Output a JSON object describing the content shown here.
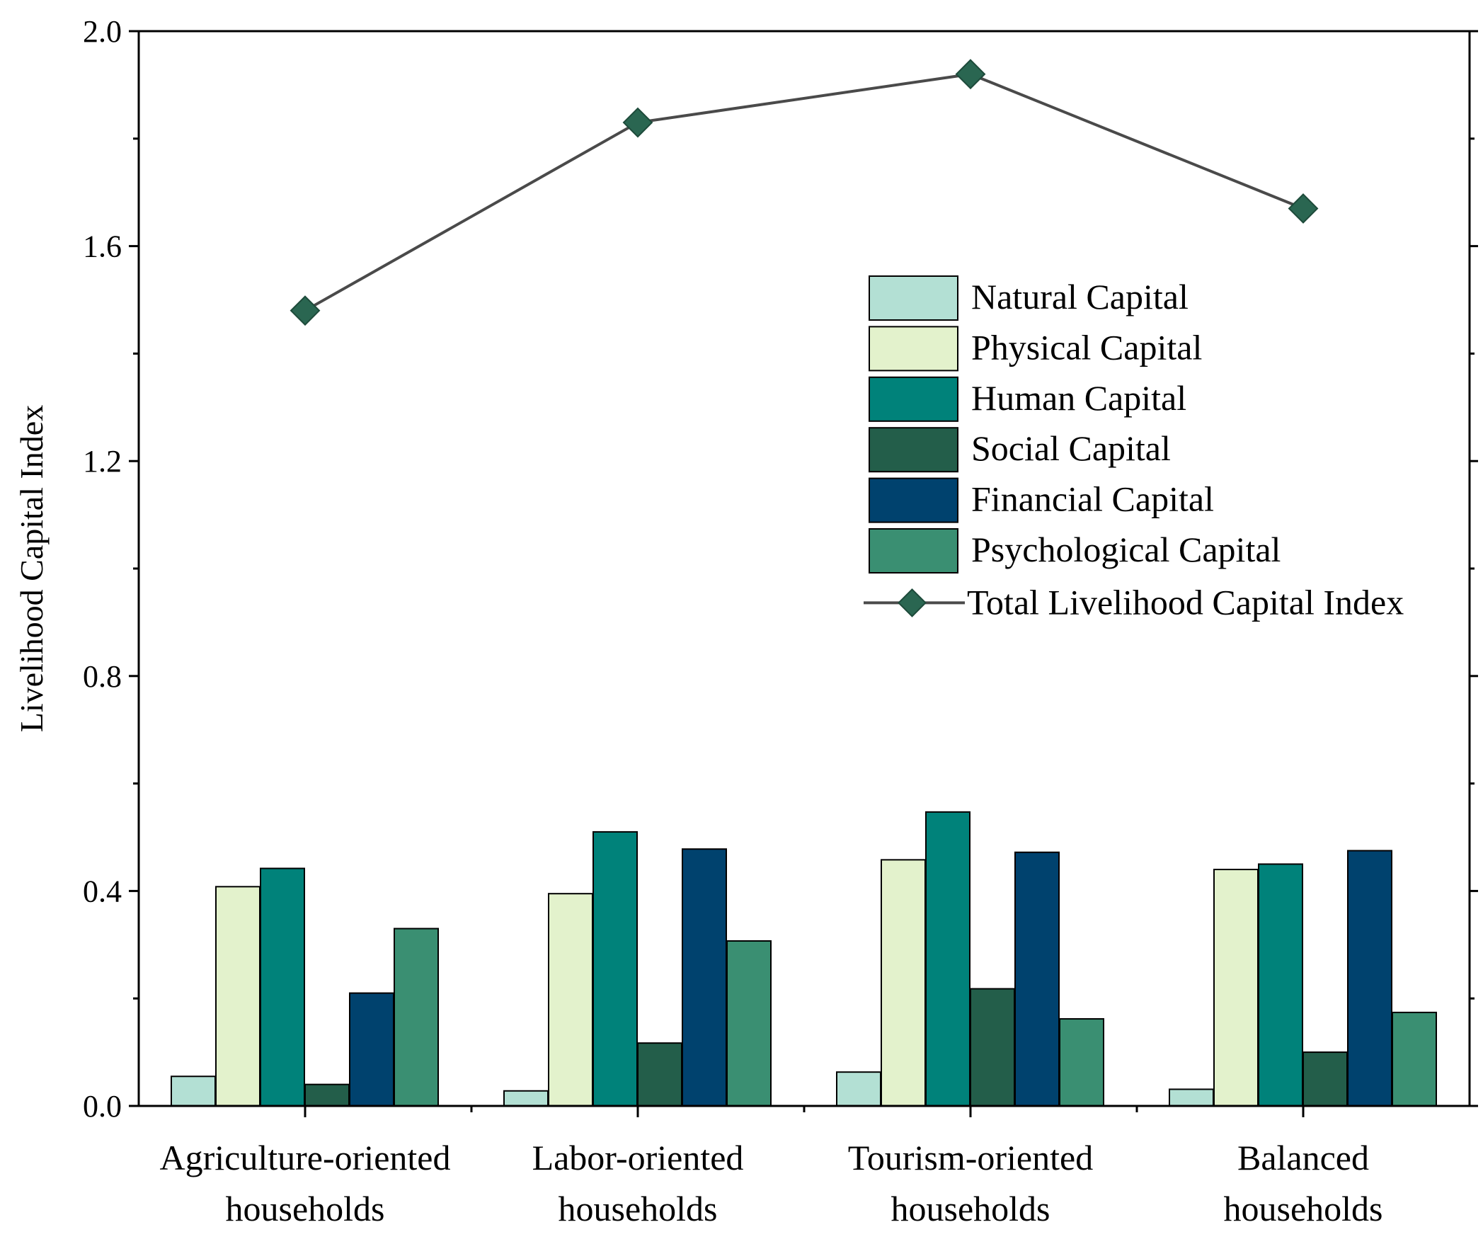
{
  "chart_data": {
    "type": "bar",
    "title": "",
    "xlabel": "",
    "ylabel": "Livelihood Capital Index",
    "ylim": [
      0,
      2.0
    ],
    "yticks": [
      "0.0",
      "0.4",
      "0.8",
      "1.2",
      "1.6",
      "2.0"
    ],
    "yticks_values": [
      0,
      0.4,
      0.8,
      1.2,
      1.6,
      2.0
    ],
    "categories": [
      [
        "Agriculture-oriented",
        "households"
      ],
      [
        "Labor-oriented",
        "households"
      ],
      [
        "Tourism-oriented",
        "households"
      ],
      [
        "Balanced",
        "households"
      ]
    ],
    "series": [
      {
        "name": "Natural Capital",
        "color": "#b3e0d4",
        "values": [
          0.055,
          0.028,
          0.063,
          0.031
        ]
      },
      {
        "name": "Physical Capital",
        "color": "#e3f2cc",
        "values": [
          0.408,
          0.395,
          0.458,
          0.44
        ]
      },
      {
        "name": "Human Capital",
        "color": "#00827a",
        "values": [
          0.442,
          0.51,
          0.547,
          0.45
        ]
      },
      {
        "name": "Social Capital",
        "color": "#235e4a",
        "values": [
          0.04,
          0.117,
          0.218,
          0.1
        ]
      },
      {
        "name": "Financial Capital",
        "color": "#00426e",
        "values": [
          0.21,
          0.478,
          0.472,
          0.475
        ]
      },
      {
        "name": "Psychological Capital",
        "color": "#3a8f72",
        "values": [
          0.33,
          0.307,
          0.162,
          0.174
        ]
      }
    ],
    "line_series": {
      "name": "Total Livelihood Capital Index",
      "color": "#2a6651",
      "line_color": "#4a4a4a",
      "values": [
        1.48,
        1.83,
        1.92,
        1.67
      ]
    },
    "grid": false,
    "legend_position": "top-right"
  }
}
